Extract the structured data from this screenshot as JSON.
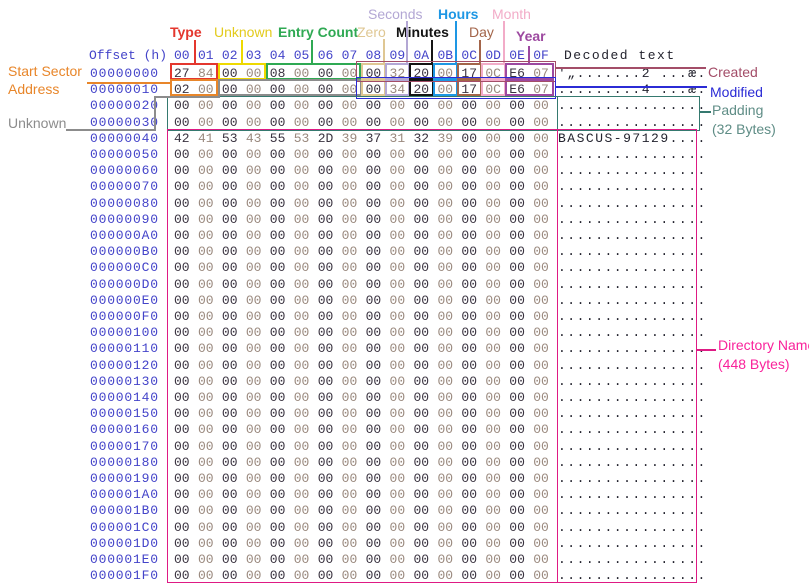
{
  "hex_viewer": {
    "header": {
      "offset_label": "Offset (h)",
      "byte_labels": [
        "00",
        "01",
        "02",
        "03",
        "04",
        "05",
        "06",
        "07",
        "08",
        "09",
        "0A",
        "0B",
        "0C",
        "0D",
        "0E",
        "0F"
      ],
      "decoded_label": "Decoded text"
    },
    "rows": [
      {
        "offset": "00000000",
        "bytes": [
          "27",
          "84",
          "00",
          "00",
          "08",
          "00",
          "00",
          "00",
          "00",
          "32",
          "20",
          "00",
          "17",
          "0C",
          "E6",
          "07"
        ],
        "decoded": "'„.......2 ...æ."
      },
      {
        "offset": "00000010",
        "bytes": [
          "02",
          "00",
          "00",
          "00",
          "00",
          "00",
          "00",
          "00",
          "00",
          "34",
          "20",
          "00",
          "17",
          "0C",
          "E6",
          "07"
        ],
        "decoded": ".........4 ...æ."
      },
      {
        "offset": "00000020",
        "bytes": [
          "00",
          "00",
          "00",
          "00",
          "00",
          "00",
          "00",
          "00",
          "00",
          "00",
          "00",
          "00",
          "00",
          "00",
          "00",
          "00"
        ],
        "decoded": "................"
      },
      {
        "offset": "00000030",
        "bytes": [
          "00",
          "00",
          "00",
          "00",
          "00",
          "00",
          "00",
          "00",
          "00",
          "00",
          "00",
          "00",
          "00",
          "00",
          "00",
          "00"
        ],
        "decoded": "................"
      },
      {
        "offset": "00000040",
        "bytes": [
          "42",
          "41",
          "53",
          "43",
          "55",
          "53",
          "2D",
          "39",
          "37",
          "31",
          "32",
          "39",
          "00",
          "00",
          "00",
          "00"
        ],
        "decoded": "BASCUS-97129...."
      },
      {
        "offset": "00000050",
        "bytes": [
          "00",
          "00",
          "00",
          "00",
          "00",
          "00",
          "00",
          "00",
          "00",
          "00",
          "00",
          "00",
          "00",
          "00",
          "00",
          "00"
        ],
        "decoded": "................"
      },
      {
        "offset": "00000060",
        "bytes": [
          "00",
          "00",
          "00",
          "00",
          "00",
          "00",
          "00",
          "00",
          "00",
          "00",
          "00",
          "00",
          "00",
          "00",
          "00",
          "00"
        ],
        "decoded": "................"
      },
      {
        "offset": "00000070",
        "bytes": [
          "00",
          "00",
          "00",
          "00",
          "00",
          "00",
          "00",
          "00",
          "00",
          "00",
          "00",
          "00",
          "00",
          "00",
          "00",
          "00"
        ],
        "decoded": "................"
      },
      {
        "offset": "00000080",
        "bytes": [
          "00",
          "00",
          "00",
          "00",
          "00",
          "00",
          "00",
          "00",
          "00",
          "00",
          "00",
          "00",
          "00",
          "00",
          "00",
          "00"
        ],
        "decoded": "................"
      },
      {
        "offset": "00000090",
        "bytes": [
          "00",
          "00",
          "00",
          "00",
          "00",
          "00",
          "00",
          "00",
          "00",
          "00",
          "00",
          "00",
          "00",
          "00",
          "00",
          "00"
        ],
        "decoded": "................"
      },
      {
        "offset": "000000A0",
        "bytes": [
          "00",
          "00",
          "00",
          "00",
          "00",
          "00",
          "00",
          "00",
          "00",
          "00",
          "00",
          "00",
          "00",
          "00",
          "00",
          "00"
        ],
        "decoded": "................"
      },
      {
        "offset": "000000B0",
        "bytes": [
          "00",
          "00",
          "00",
          "00",
          "00",
          "00",
          "00",
          "00",
          "00",
          "00",
          "00",
          "00",
          "00",
          "00",
          "00",
          "00"
        ],
        "decoded": "................"
      },
      {
        "offset": "000000C0",
        "bytes": [
          "00",
          "00",
          "00",
          "00",
          "00",
          "00",
          "00",
          "00",
          "00",
          "00",
          "00",
          "00",
          "00",
          "00",
          "00",
          "00"
        ],
        "decoded": "................"
      },
      {
        "offset": "000000D0",
        "bytes": [
          "00",
          "00",
          "00",
          "00",
          "00",
          "00",
          "00",
          "00",
          "00",
          "00",
          "00",
          "00",
          "00",
          "00",
          "00",
          "00"
        ],
        "decoded": "................"
      },
      {
        "offset": "000000E0",
        "bytes": [
          "00",
          "00",
          "00",
          "00",
          "00",
          "00",
          "00",
          "00",
          "00",
          "00",
          "00",
          "00",
          "00",
          "00",
          "00",
          "00"
        ],
        "decoded": "................"
      },
      {
        "offset": "000000F0",
        "bytes": [
          "00",
          "00",
          "00",
          "00",
          "00",
          "00",
          "00",
          "00",
          "00",
          "00",
          "00",
          "00",
          "00",
          "00",
          "00",
          "00"
        ],
        "decoded": "................"
      },
      {
        "offset": "00000100",
        "bytes": [
          "00",
          "00",
          "00",
          "00",
          "00",
          "00",
          "00",
          "00",
          "00",
          "00",
          "00",
          "00",
          "00",
          "00",
          "00",
          "00"
        ],
        "decoded": "................"
      },
      {
        "offset": "00000110",
        "bytes": [
          "00",
          "00",
          "00",
          "00",
          "00",
          "00",
          "00",
          "00",
          "00",
          "00",
          "00",
          "00",
          "00",
          "00",
          "00",
          "00"
        ],
        "decoded": "................"
      },
      {
        "offset": "00000120",
        "bytes": [
          "00",
          "00",
          "00",
          "00",
          "00",
          "00",
          "00",
          "00",
          "00",
          "00",
          "00",
          "00",
          "00",
          "00",
          "00",
          "00"
        ],
        "decoded": "................"
      },
      {
        "offset": "00000130",
        "bytes": [
          "00",
          "00",
          "00",
          "00",
          "00",
          "00",
          "00",
          "00",
          "00",
          "00",
          "00",
          "00",
          "00",
          "00",
          "00",
          "00"
        ],
        "decoded": "................"
      },
      {
        "offset": "00000140",
        "bytes": [
          "00",
          "00",
          "00",
          "00",
          "00",
          "00",
          "00",
          "00",
          "00",
          "00",
          "00",
          "00",
          "00",
          "00",
          "00",
          "00"
        ],
        "decoded": "................"
      },
      {
        "offset": "00000150",
        "bytes": [
          "00",
          "00",
          "00",
          "00",
          "00",
          "00",
          "00",
          "00",
          "00",
          "00",
          "00",
          "00",
          "00",
          "00",
          "00",
          "00"
        ],
        "decoded": "................"
      },
      {
        "offset": "00000160",
        "bytes": [
          "00",
          "00",
          "00",
          "00",
          "00",
          "00",
          "00",
          "00",
          "00",
          "00",
          "00",
          "00",
          "00",
          "00",
          "00",
          "00"
        ],
        "decoded": "................"
      },
      {
        "offset": "00000170",
        "bytes": [
          "00",
          "00",
          "00",
          "00",
          "00",
          "00",
          "00",
          "00",
          "00",
          "00",
          "00",
          "00",
          "00",
          "00",
          "00",
          "00"
        ],
        "decoded": "................"
      },
      {
        "offset": "00000180",
        "bytes": [
          "00",
          "00",
          "00",
          "00",
          "00",
          "00",
          "00",
          "00",
          "00",
          "00",
          "00",
          "00",
          "00",
          "00",
          "00",
          "00"
        ],
        "decoded": "................"
      },
      {
        "offset": "00000190",
        "bytes": [
          "00",
          "00",
          "00",
          "00",
          "00",
          "00",
          "00",
          "00",
          "00",
          "00",
          "00",
          "00",
          "00",
          "00",
          "00",
          "00"
        ],
        "decoded": "................"
      },
      {
        "offset": "000001A0",
        "bytes": [
          "00",
          "00",
          "00",
          "00",
          "00",
          "00",
          "00",
          "00",
          "00",
          "00",
          "00",
          "00",
          "00",
          "00",
          "00",
          "00"
        ],
        "decoded": "................"
      },
      {
        "offset": "000001B0",
        "bytes": [
          "00",
          "00",
          "00",
          "00",
          "00",
          "00",
          "00",
          "00",
          "00",
          "00",
          "00",
          "00",
          "00",
          "00",
          "00",
          "00"
        ],
        "decoded": "................"
      },
      {
        "offset": "000001C0",
        "bytes": [
          "00",
          "00",
          "00",
          "00",
          "00",
          "00",
          "00",
          "00",
          "00",
          "00",
          "00",
          "00",
          "00",
          "00",
          "00",
          "00"
        ],
        "decoded": "................"
      },
      {
        "offset": "000001D0",
        "bytes": [
          "00",
          "00",
          "00",
          "00",
          "00",
          "00",
          "00",
          "00",
          "00",
          "00",
          "00",
          "00",
          "00",
          "00",
          "00",
          "00"
        ],
        "decoded": "................"
      },
      {
        "offset": "000001E0",
        "bytes": [
          "00",
          "00",
          "00",
          "00",
          "00",
          "00",
          "00",
          "00",
          "00",
          "00",
          "00",
          "00",
          "00",
          "00",
          "00",
          "00"
        ],
        "decoded": "................"
      },
      {
        "offset": "000001F0",
        "bytes": [
          "00",
          "00",
          "00",
          "00",
          "00",
          "00",
          "00",
          "00",
          "00",
          "00",
          "00",
          "00",
          "00",
          "00",
          "00",
          "00"
        ],
        "decoded": "................"
      }
    ]
  },
  "annotations": {
    "type": {
      "label": "Type",
      "color": "#e4372e"
    },
    "unknown_top": {
      "label": "Unknown",
      "color": "#e3cb1c",
      "box_color": "#eed900"
    },
    "entry_count": {
      "label": "Entry Count",
      "color": "#2fa953"
    },
    "zero": {
      "label": "Zero",
      "color": "#dfc793"
    },
    "seconds": {
      "label": "Seconds",
      "color": "#b3a7d4"
    },
    "minutes": {
      "label": "Minutes",
      "color": "#141414"
    },
    "hours": {
      "label": "Hours",
      "color": "#1e97e4"
    },
    "day": {
      "label": "Day",
      "color": "#a3654a"
    },
    "month": {
      "label": "Month",
      "color": "#f2acc8"
    },
    "year": {
      "label": "Year",
      "color": "#9d49a0"
    },
    "start_sector": {
      "label": "Start Sector",
      "label2": "Address",
      "color": "#e8862a"
    },
    "unknown_left": {
      "label": "Unknown",
      "color": "#8c8c8c"
    },
    "created": {
      "label": "Created",
      "color": "#a34d68"
    },
    "modified": {
      "label": "Modified",
      "color": "#2b2bd5"
    },
    "padding": {
      "label": "Padding",
      "label2": "(32 Bytes)",
      "color": "#5f8d86",
      "box_color": "#35796f"
    },
    "directory_name": {
      "label": "Directory Name",
      "label2": "(448 Bytes)",
      "color": "#f9229b",
      "box_color": "#de1a84"
    }
  },
  "palette": {
    "background": "#ffffff",
    "offset_text": "#4343c9",
    "byte_dark": "#3a3340",
    "byte_light": "#9a897e",
    "decoded_text": "#23232e"
  }
}
